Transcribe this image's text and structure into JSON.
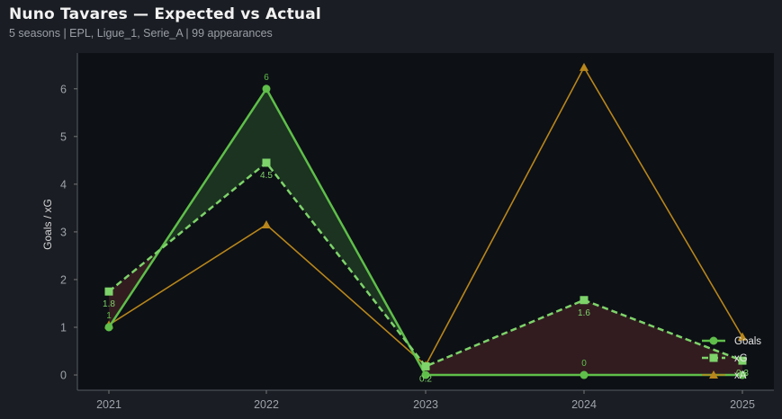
{
  "header": {
    "title": "Nuno Tavares — Expected vs Actual",
    "subtitle": "5 seasons | EPL, Ligue_1, Serie_A | 99 appearances"
  },
  "chart_data": {
    "type": "line",
    "title": "Nuno Tavares — Expected vs Actual",
    "subtitle": "5 seasons | EPL, Ligue_1, Serie_A | 99 appearances",
    "xlabel": "",
    "ylabel": "Goals / xG",
    "x": [
      "2021",
      "2022",
      "2023",
      "2024",
      "2025"
    ],
    "ylim": [
      -0.32,
      6.75
    ],
    "yticks": [
      0,
      1,
      2,
      3,
      4,
      5,
      6
    ],
    "grid": false,
    "legend_position": "bottom-right",
    "series": [
      {
        "name": "Goals",
        "values": [
          1,
          6,
          0,
          0,
          0
        ],
        "color": "#5fbf4a",
        "marker": "circle",
        "style": "solid",
        "labels": [
          "1",
          "6",
          "",
          "0",
          ""
        ]
      },
      {
        "name": "xG",
        "values": [
          1.75,
          4.45,
          0.18,
          1.57,
          0.3
        ],
        "color": "#7ed36a",
        "marker": "square",
        "style": "dashed",
        "labels": [
          "1.8",
          "4.5",
          "0.2",
          "1.6",
          "0.3"
        ]
      },
      {
        "name": "xA",
        "values": [
          1.05,
          3.15,
          0.2,
          6.45,
          0.8
        ],
        "color": "#b8861b",
        "marker": "triangle",
        "style": "solid",
        "labels": []
      }
    ],
    "fill_over_color": "#1f3a22",
    "fill_under_color": "#3a1f22"
  }
}
